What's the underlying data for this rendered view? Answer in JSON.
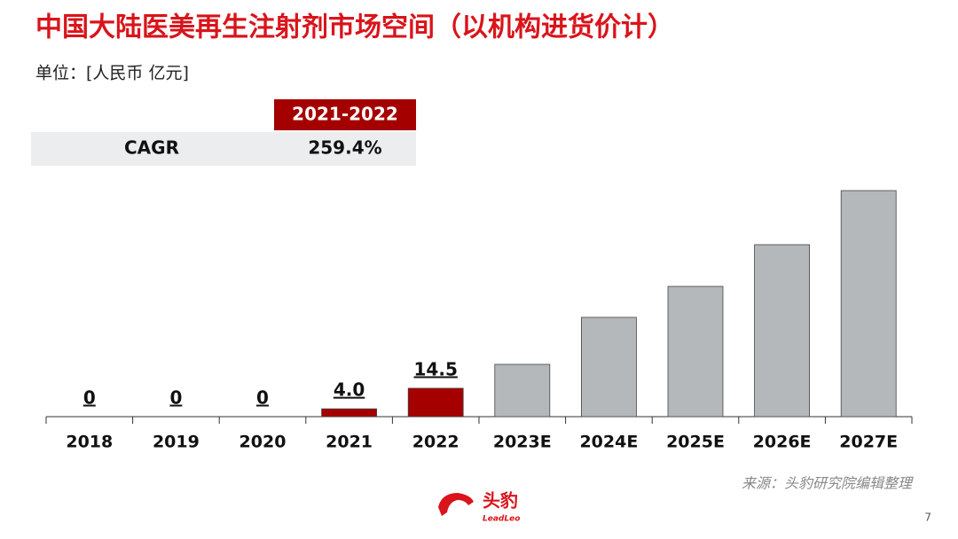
{
  "chart_data": {
    "type": "bar",
    "title": "中国大陆医美再生注射剂市场空间（以机构进货价计）",
    "subtitle": "单位：[人民币 亿元]",
    "categories": [
      "2018",
      "2019",
      "2020",
      "2021",
      "2022",
      "2023E",
      "2024E",
      "2025E",
      "2026E",
      "2027E"
    ],
    "values": [
      0,
      0,
      0,
      4.0,
      14.5,
      26.7,
      50.7,
      66.5,
      87.8,
      115.4
    ],
    "value_labels": [
      "0",
      "0",
      "0",
      "4.0",
      "14.5",
      null,
      null,
      null,
      null,
      null
    ],
    "colors": [
      "#a50000",
      "#a50000",
      "#a50000",
      "#a50000",
      "#a50000",
      "#b4b8bb",
      "#b4b8bb",
      "#b4b8bb",
      "#b4b8bb",
      "#b4b8bb"
    ],
    "cagr_table": {
      "header": "2021-2022",
      "label": "CAGR",
      "value": "259.4%"
    },
    "source": "来源：头豹研究院编辑整理"
  },
  "page": {
    "number": "7",
    "logo": {
      "name": "头豹",
      "sub": "LeadLeo"
    }
  }
}
